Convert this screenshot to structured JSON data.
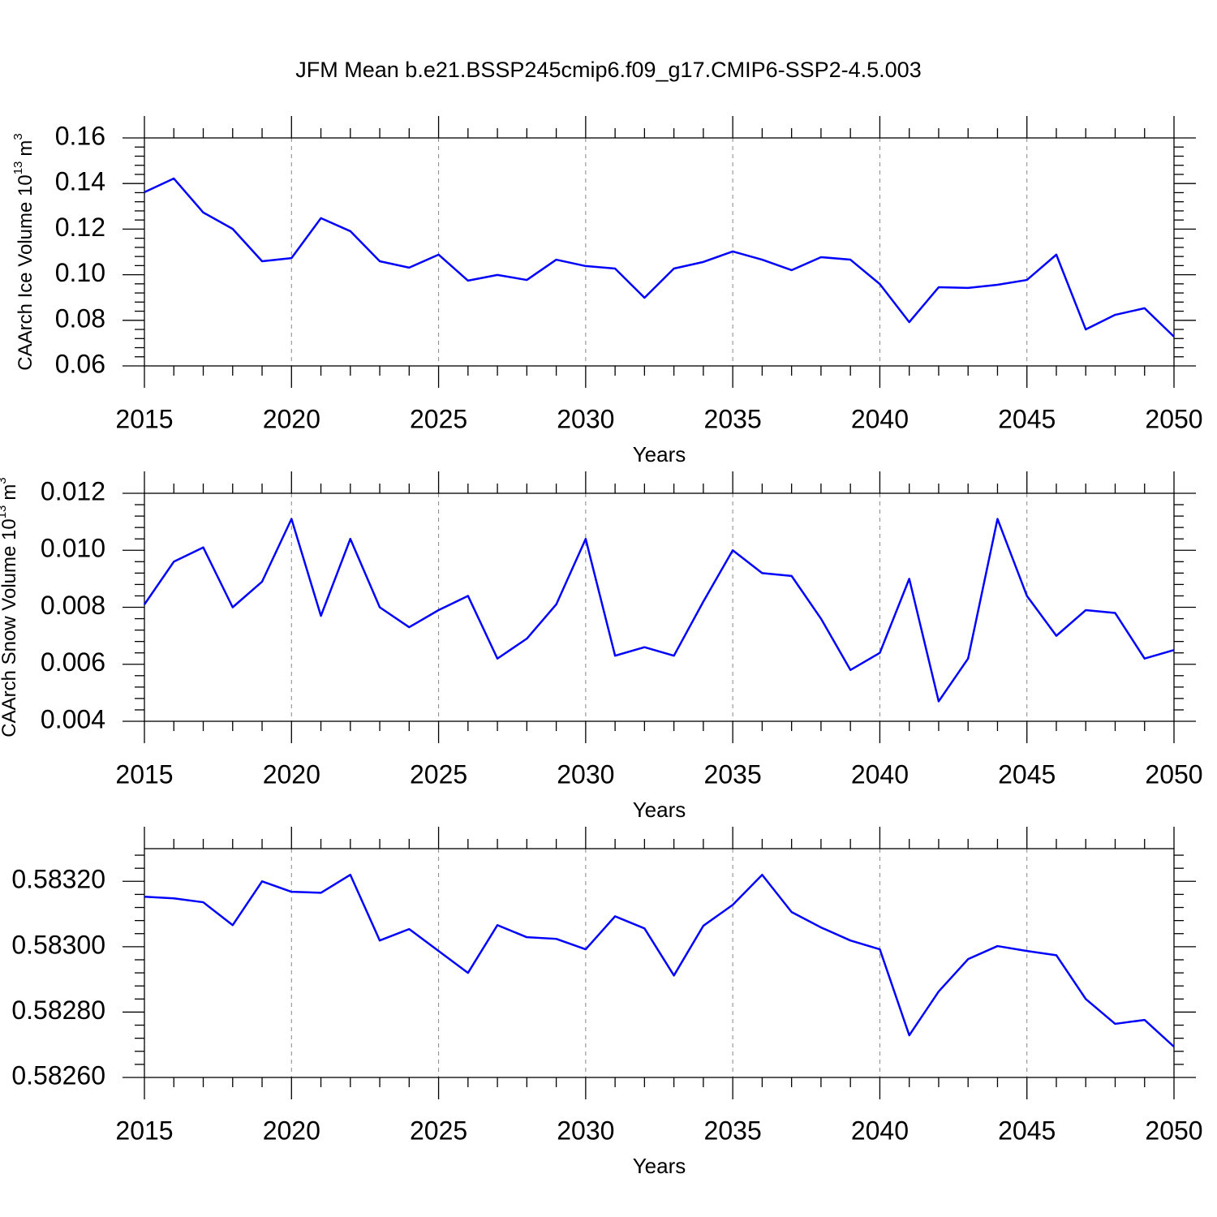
{
  "chart_data": [
    {
      "type": "line",
      "title": "JFM Mean b.e21.BSSP245cmip6.f09_g17.CMIP6-SSP2-4.5.003",
      "xlabel": "Years",
      "ylabel": {
        "text": "CAArch Ice Volume 10",
        "exponent": "13",
        "unit": "m",
        "unit_exponent": "3"
      },
      "x": [
        2015,
        2016,
        2017,
        2018,
        2019,
        2020,
        2021,
        2022,
        2023,
        2024,
        2025,
        2026,
        2027,
        2028,
        2029,
        2030,
        2031,
        2032,
        2033,
        2034,
        2035,
        2036,
        2037,
        2038,
        2039,
        2040,
        2041,
        2042,
        2043,
        2044,
        2045,
        2046,
        2047,
        2048,
        2049,
        2050
      ],
      "series": [
        {
          "color": "#0000ff",
          "values": [
            0.1362,
            0.1422,
            0.1273,
            0.1201,
            0.1059,
            0.1073,
            0.1248,
            0.1191,
            0.1059,
            0.1031,
            0.1088,
            0.0974,
            0.0999,
            0.0977,
            0.1066,
            0.1038,
            0.1027,
            0.0899,
            0.1027,
            0.1056,
            0.1102,
            0.1066,
            0.102,
            0.1077,
            0.1066,
            0.0959,
            0.0792,
            0.0945,
            0.0942,
            0.0956,
            0.0977,
            0.1088,
            0.076,
            0.0824,
            0.0853,
            0.0728
          ]
        }
      ],
      "xlim": [
        2015,
        2050
      ],
      "xticks": [
        2015,
        2020,
        2025,
        2030,
        2035,
        2040,
        2045,
        2050
      ],
      "ylim": [
        0.06,
        0.16
      ],
      "yticks": [
        0.06,
        0.08,
        {
          "value": 0.1,
          "label": "0.10"
        },
        0.12,
        0.14,
        0.16
      ],
      "grid": true
    },
    {
      "type": "line",
      "xlabel": "Years",
      "ylabel": {
        "text": "CAArch Snow Volume 10",
        "exponent": "13",
        "unit": "m",
        "unit_exponent": "3"
      },
      "x": [
        2015,
        2016,
        2017,
        2018,
        2019,
        2020,
        2021,
        2022,
        2023,
        2024,
        2025,
        2026,
        2027,
        2028,
        2029,
        2030,
        2031,
        2032,
        2033,
        2034,
        2035,
        2036,
        2037,
        2038,
        2039,
        2040,
        2041,
        2042,
        2043,
        2044,
        2045,
        2046,
        2047,
        2048,
        2049,
        2050
      ],
      "series": [
        {
          "color": "#0000ff",
          "values": [
            0.0081,
            0.0096,
            0.0101,
            0.008,
            0.0089,
            0.0111,
            0.0077,
            0.0104,
            0.008,
            0.0073,
            0.0079,
            0.0084,
            0.0062,
            0.0069,
            0.0081,
            0.0104,
            0.0063,
            0.0066,
            0.0063,
            0.0082,
            0.01,
            0.0092,
            0.0091,
            0.0076,
            0.0058,
            0.0064,
            0.009,
            0.0047,
            0.0062,
            0.0111,
            0.0084,
            0.007,
            0.0079,
            0.0078,
            0.0062,
            0.0065
          ]
        }
      ],
      "xlim": [
        2015,
        2050
      ],
      "xticks": [
        2015,
        2020,
        2025,
        2030,
        2035,
        2040,
        2045,
        2050
      ],
      "ylim": [
        0.004,
        0.012
      ],
      "yticks": [
        0.004,
        0.006,
        0.008,
        {
          "value": 0.01,
          "label": "0.010"
        },
        0.012
      ],
      "grid": true
    },
    {
      "type": "line",
      "xlabel": "Years",
      "x": [
        2015,
        2016,
        2017,
        2018,
        2019,
        2020,
        2021,
        2022,
        2023,
        2024,
        2025,
        2026,
        2027,
        2028,
        2029,
        2030,
        2031,
        2032,
        2033,
        2034,
        2035,
        2036,
        2037,
        2038,
        2039,
        2040,
        2041,
        2042,
        2043,
        2044,
        2045,
        2046,
        2047,
        2048,
        2049,
        2050
      ],
      "series": [
        {
          "color": "#0000ff",
          "values": [
            0.583153,
            0.583148,
            0.583136,
            0.583066,
            0.5832,
            0.583168,
            0.583165,
            0.58322,
            0.583019,
            0.583054,
            0.582987,
            0.58292,
            0.583066,
            0.583029,
            0.583024,
            0.582992,
            0.583093,
            0.583056,
            0.582912,
            0.583064,
            0.583128,
            0.58322,
            0.583106,
            0.583059,
            0.583019,
            0.582992,
            0.582729,
            0.582863,
            0.582962,
            0.583002,
            0.582987,
            0.582974,
            0.58284,
            0.582764,
            0.582776,
            0.582694
          ]
        }
      ],
      "xlim": [
        2015,
        2050
      ],
      "xticks": [
        2015,
        2020,
        2025,
        2030,
        2035,
        2040,
        2045,
        2050
      ],
      "ylim": [
        0.5826,
        0.5833
      ],
      "yticks": [
        {
          "value": 0.5826,
          "label": "0.58260"
        },
        {
          "value": 0.5828,
          "label": "0.58280"
        },
        {
          "value": 0.583,
          "label": "0.58300"
        },
        {
          "value": 0.5832,
          "label": "0.58320"
        }
      ],
      "grid": true
    }
  ]
}
